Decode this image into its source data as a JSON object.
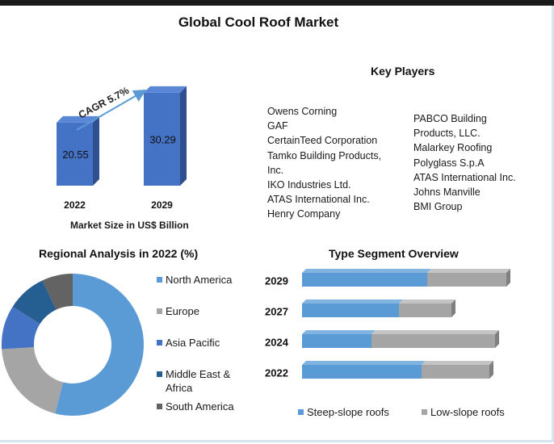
{
  "title": "Global Cool Roof Market",
  "market_size": {
    "caption": "Market Size in US$ Billion",
    "cagr_label": "CAGR 5.7%"
  },
  "key_players": {
    "title": "Key Players",
    "column1": [
      "Owens Corning",
      "GAF",
      "CertainTeed Corporation",
      "Tamko Building Products,",
      "Inc.",
      "IKO Industries Ltd.",
      "ATAS International Inc.",
      "Henry Company"
    ],
    "column2": [
      "PABCO Building",
      "Products, LLC.",
      "Malarkey Roofing",
      "Polyglass S.p.A",
      "ATAS International Inc.",
      "Johns Manville",
      "BMI Group"
    ]
  },
  "regional": {
    "title": "Regional Analysis in 2022 (%)"
  },
  "type_segment": {
    "title": "Type Segment Overview"
  },
  "colors": {
    "bar_blue": "#4472c4",
    "bar_blue_dark": "#2f4f8f",
    "north_america": "#5b9bd5",
    "europe": "#a5a5a5",
    "asia_pacific": "#4472c4",
    "middle_east_africa": "#255e91",
    "south_america": "#636363",
    "steep": "#5b9bd5",
    "low": "#a5a5a5"
  },
  "chart_data": [
    {
      "type": "bar",
      "categories": [
        "2022",
        "2029"
      ],
      "values": [
        20.55,
        30.29
      ],
      "xlabel": "Market Size in US$ Billion",
      "annotation": "CAGR 5.7%"
    },
    {
      "type": "pie",
      "title": "Regional Analysis in 2022 (%)",
      "labels": [
        "North America",
        "Europe",
        "Asia Pacific",
        "Middle East & Africa",
        "South America"
      ],
      "values": [
        54,
        20,
        10,
        9,
        7
      ],
      "legend": "right"
    },
    {
      "type": "bar",
      "orientation": "horizontal",
      "stacked": true,
      "title": "Type Segment Overview",
      "categories": [
        "2029",
        "2027",
        "2024",
        "2022"
      ],
      "series": [
        {
          "name": "Steep-slope roofs",
          "values": [
            155,
            120,
            86,
            148
          ]
        },
        {
          "name": "Low-slope roofs",
          "values": [
            98,
            65,
            153,
            84
          ]
        }
      ],
      "legend": "bottom"
    }
  ]
}
